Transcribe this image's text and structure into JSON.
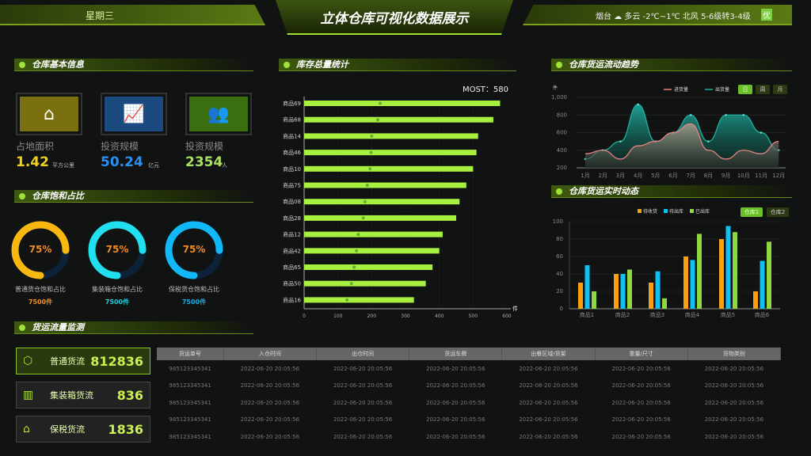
{
  "header": {
    "weekday": "星期三",
    "title": "立体仓库可视化数据展示",
    "weather": "烟台 ☁ 多云 -2℃~1℃ 北风 5-6级转3-4级",
    "air": "优"
  },
  "sections": {
    "basic": "仓库基本信息",
    "stock": "库存总量统计",
    "trend": "仓库货运流动趋势",
    "realtime": "仓库货运实时动态",
    "saturation": "仓库饱和占比",
    "flow": "货运流量监测"
  },
  "basic_info": [
    {
      "icon": "house-icon",
      "label": "占地面积",
      "value": "1.42",
      "unit": "平方公里",
      "color": "#f0d020",
      "bg": "#7a7010"
    },
    {
      "icon": "investment-chart-icon",
      "label": "投资规模",
      "value": "50.24",
      "unit": "亿元",
      "color": "#2a90f0",
      "bg": "#1a4a80"
    },
    {
      "icon": "people-icon",
      "label": "投资规模",
      "value": "2354",
      "unit": "人",
      "color": "#a8e060",
      "bg": "#3a7010"
    }
  ],
  "saturation": [
    {
      "label": "普通货仓饱和占比",
      "percent": 75,
      "pct_text": "75%",
      "count": "7500件",
      "color": "#f8b810",
      "count_color": "#f09020"
    },
    {
      "label": "集装箱仓饱和占比",
      "percent": 75,
      "pct_text": "75%",
      "count": "7500件",
      "color": "#20e0f0",
      "count_color": "#20d0e0"
    },
    {
      "label": "保税货仓饱和占比",
      "percent": 75,
      "pct_text": "75%",
      "count": "7500件",
      "color": "#10b8f8",
      "count_color": "#10b0f0"
    }
  ],
  "chart_data": [
    {
      "type": "bar",
      "orientation": "horizontal",
      "annotation": "MOST：580",
      "unit": "件",
      "xlim": [
        0,
        600
      ],
      "xticks": [
        0,
        100,
        200,
        300,
        400,
        500,
        600
      ],
      "categories": [
        "商品69",
        "商品68",
        "商品14",
        "商品46",
        "商品10",
        "商品75",
        "商品08",
        "商品28",
        "商品12",
        "商品42",
        "商品65",
        "商品50",
        "商品16"
      ],
      "values": [
        580,
        560,
        515,
        510,
        500,
        480,
        460,
        450,
        410,
        400,
        380,
        360,
        325
      ],
      "markers": [
        225,
        218,
        200,
        198,
        195,
        187,
        180,
        175,
        160,
        155,
        148,
        140,
        127
      ],
      "color": "#a8f040"
    },
    {
      "type": "area",
      "unit": "件",
      "ylim": [
        200,
        1000
      ],
      "yticks": [
        "200",
        "400",
        "600",
        "800",
        "1,000"
      ],
      "categories": [
        "1月",
        "2月",
        "3月",
        "4月",
        "5月",
        "6月",
        "7月",
        "8月",
        "9月",
        "10月",
        "11月",
        "12月"
      ],
      "series": [
        {
          "name": "进货量",
          "values": [
            360,
            400,
            300,
            450,
            500,
            600,
            700,
            400,
            300,
            400,
            360,
            500
          ],
          "color": "#e88080"
        },
        {
          "name": "出货量",
          "values": [
            300,
            400,
            500,
            920,
            500,
            600,
            800,
            500,
            800,
            800,
            600,
            400
          ],
          "color": "#20b0a0"
        }
      ],
      "buttons": [
        "日",
        "周",
        "月"
      ],
      "active": "日"
    },
    {
      "type": "bar",
      "ylim": [
        0,
        100
      ],
      "yticks": [
        0,
        20,
        40,
        60,
        80,
        100
      ],
      "categories": [
        "商品1",
        "商品2",
        "商品3",
        "商品4",
        "商品5",
        "商品6"
      ],
      "series": [
        {
          "name": "待收货",
          "values": [
            30,
            40,
            30,
            60,
            80,
            20
          ],
          "color": "#f8a010"
        },
        {
          "name": "待出库",
          "values": [
            50,
            40,
            43,
            56,
            95,
            55
          ],
          "color": "#10c0f0"
        },
        {
          "name": "已出库",
          "values": [
            20,
            45,
            12,
            86,
            88,
            77
          ],
          "color": "#90d840"
        }
      ],
      "buttons": [
        "仓库1",
        "仓库2"
      ],
      "active": "仓库1"
    }
  ],
  "flow_cards": [
    {
      "icon": "box-icon",
      "name": "普通货流",
      "value": "812836"
    },
    {
      "icon": "container-icon",
      "name": "集装箱货流",
      "value": "836"
    },
    {
      "icon": "bonded-warehouse-icon",
      "name": "保税货流",
      "value": "1836"
    }
  ],
  "table": {
    "headers": [
      "货运单号",
      "入仓时间",
      "出仓时间",
      "货运车牌",
      "出餐区域/货架",
      "重量/尺寸",
      "货物类别"
    ],
    "rows": [
      [
        "985123345341",
        "2022-06-20 20:05:56",
        "2022-06-20 20:05:56",
        "2022-06-20 20:05:56",
        "2022-06-20 20:05:56",
        "2022-06-20 20:05:56",
        "2022-06-20 20:05:56"
      ],
      [
        "985123345341",
        "2022-06-20 20:05:56",
        "2022-06-20 20:05:56",
        "2022-06-20 20:05:56",
        "2022-06-20 20:05:56",
        "2022-06-20 20:05:56",
        "2022-06-20 20:05:56"
      ],
      [
        "985123345341",
        "2022-06-20 20:05:56",
        "2022-06-20 20:05:56",
        "2022-06-20 20:05:56",
        "2022-06-20 20:05:56",
        "2022-06-20 20:05:56",
        "2022-06-20 20:05:56"
      ],
      [
        "985123345341",
        "2022-06-20 20:05:56",
        "2022-06-20 20:05:56",
        "2022-06-20 20:05:56",
        "2022-06-20 20:05:56",
        "2022-06-20 20:05:56",
        "2022-06-20 20:05:56"
      ],
      [
        "985123345341",
        "2022-06-20 20:05:56",
        "2022-06-20 20:05:56",
        "2022-06-20 20:05:56",
        "2022-06-20 20:05:56",
        "2022-06-20 20:05:56",
        "2022-06-20 20:05:56"
      ]
    ]
  }
}
